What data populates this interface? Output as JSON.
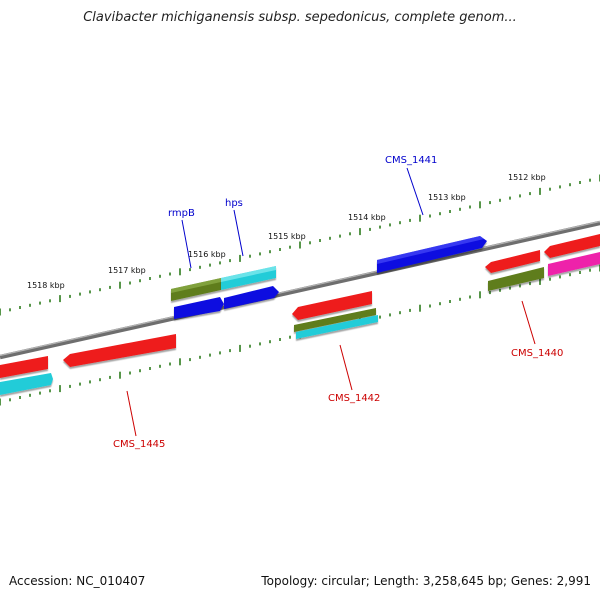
{
  "title": "Clavibacter michiganensis subsp. sepedonicus, complete genom...",
  "footer": {
    "accession": "Accession: NC_010407",
    "summary": "Topology: circular; Length: 3,258,645 bp; Genes: 2,991"
  },
  "colors": {
    "backbone": "#808080",
    "tick": "#2e7d1e",
    "label_forward": "#0000cc",
    "label_reverse": "#cc0000",
    "gene_blue": "#0a10e0",
    "gene_red": "#ee1a1a",
    "gene_cyan": "#22ccd8",
    "gene_olive": "#5e7d1a",
    "gene_magenta": "#ee22aa"
  },
  "scale_labels": [
    "1512 kbp",
    "1513 kbp",
    "1514 kbp",
    "1515 kbp",
    "1516 kbp",
    "1517 kbp",
    "1518 kbp"
  ],
  "gene_labels": {
    "cms_1441": "CMS_1441",
    "hps": "hps",
    "rmpb": "rmpB",
    "cms_1440": "CMS_1440",
    "cms_1442": "CMS_1442",
    "cms_1445": "CMS_1445"
  }
}
